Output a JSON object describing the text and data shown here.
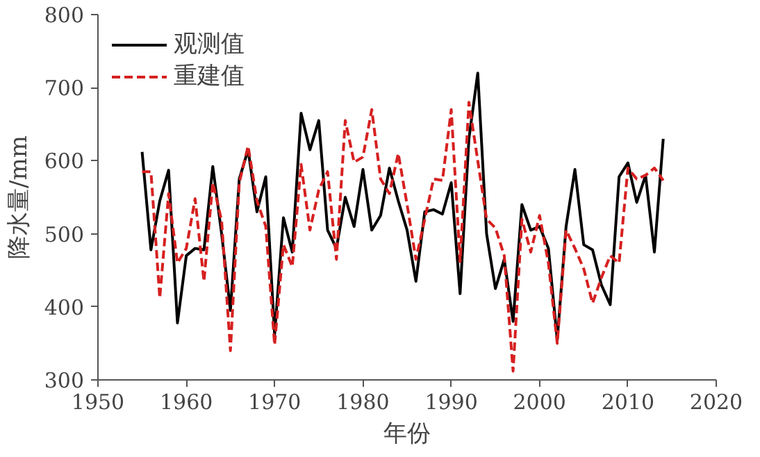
{
  "chart_data": {
    "type": "line",
    "xlabel": "年份",
    "ylabel": "降水量/mm",
    "x": [
      1955,
      1956,
      1957,
      1958,
      1959,
      1960,
      1961,
      1962,
      1963,
      1964,
      1965,
      1966,
      1967,
      1968,
      1969,
      1970,
      1971,
      1972,
      1973,
      1974,
      1975,
      1976,
      1977,
      1978,
      1979,
      1980,
      1981,
      1982,
      1983,
      1984,
      1985,
      1986,
      1987,
      1988,
      1989,
      1990,
      1991,
      1992,
      1993,
      1994,
      1995,
      1996,
      1997,
      1998,
      1999,
      2000,
      2001,
      2002,
      2003,
      2004,
      2005,
      2006,
      2007,
      2008,
      2009,
      2010,
      2011,
      2012,
      2013,
      2014
    ],
    "series": [
      {
        "name": "观测值",
        "color": "#000000",
        "line_style": "solid",
        "values": [
          612,
          478,
          545,
          587,
          378,
          470,
          480,
          478,
          592,
          500,
          395,
          575,
          615,
          530,
          578,
          362,
          522,
          475,
          665,
          615,
          655,
          505,
          480,
          550,
          510,
          588,
          505,
          525,
          590,
          545,
          505,
          435,
          530,
          533,
          527,
          570,
          418,
          630,
          720,
          500,
          425,
          465,
          380,
          540,
          505,
          510,
          480,
          355,
          510,
          588,
          485,
          478,
          430,
          403,
          578,
          597,
          543,
          580,
          475,
          630
        ]
      },
      {
        "name": "重建值",
        "color": "#d62020",
        "line_style": "dashed",
        "values": [
          585,
          585,
          412,
          555,
          460,
          480,
          548,
          435,
          570,
          518,
          340,
          570,
          620,
          545,
          510,
          348,
          485,
          455,
          595,
          505,
          560,
          585,
          465,
          655,
          598,
          605,
          670,
          575,
          555,
          610,
          540,
          465,
          520,
          575,
          573,
          670,
          462,
          680,
          600,
          520,
          508,
          470,
          312,
          520,
          475,
          525,
          460,
          350,
          505,
          480,
          452,
          405,
          440,
          470,
          460,
          590,
          575,
          580,
          590,
          573
        ]
      }
    ],
    "xlim": [
      1950,
      2020
    ],
    "xticks": [
      1950,
      1960,
      1970,
      1980,
      1990,
      2000,
      2010,
      2020
    ],
    "ylim": [
      300,
      800
    ],
    "yticks": [
      300,
      400,
      500,
      600,
      700,
      800
    ],
    "grid": false,
    "legend": "top left"
  }
}
